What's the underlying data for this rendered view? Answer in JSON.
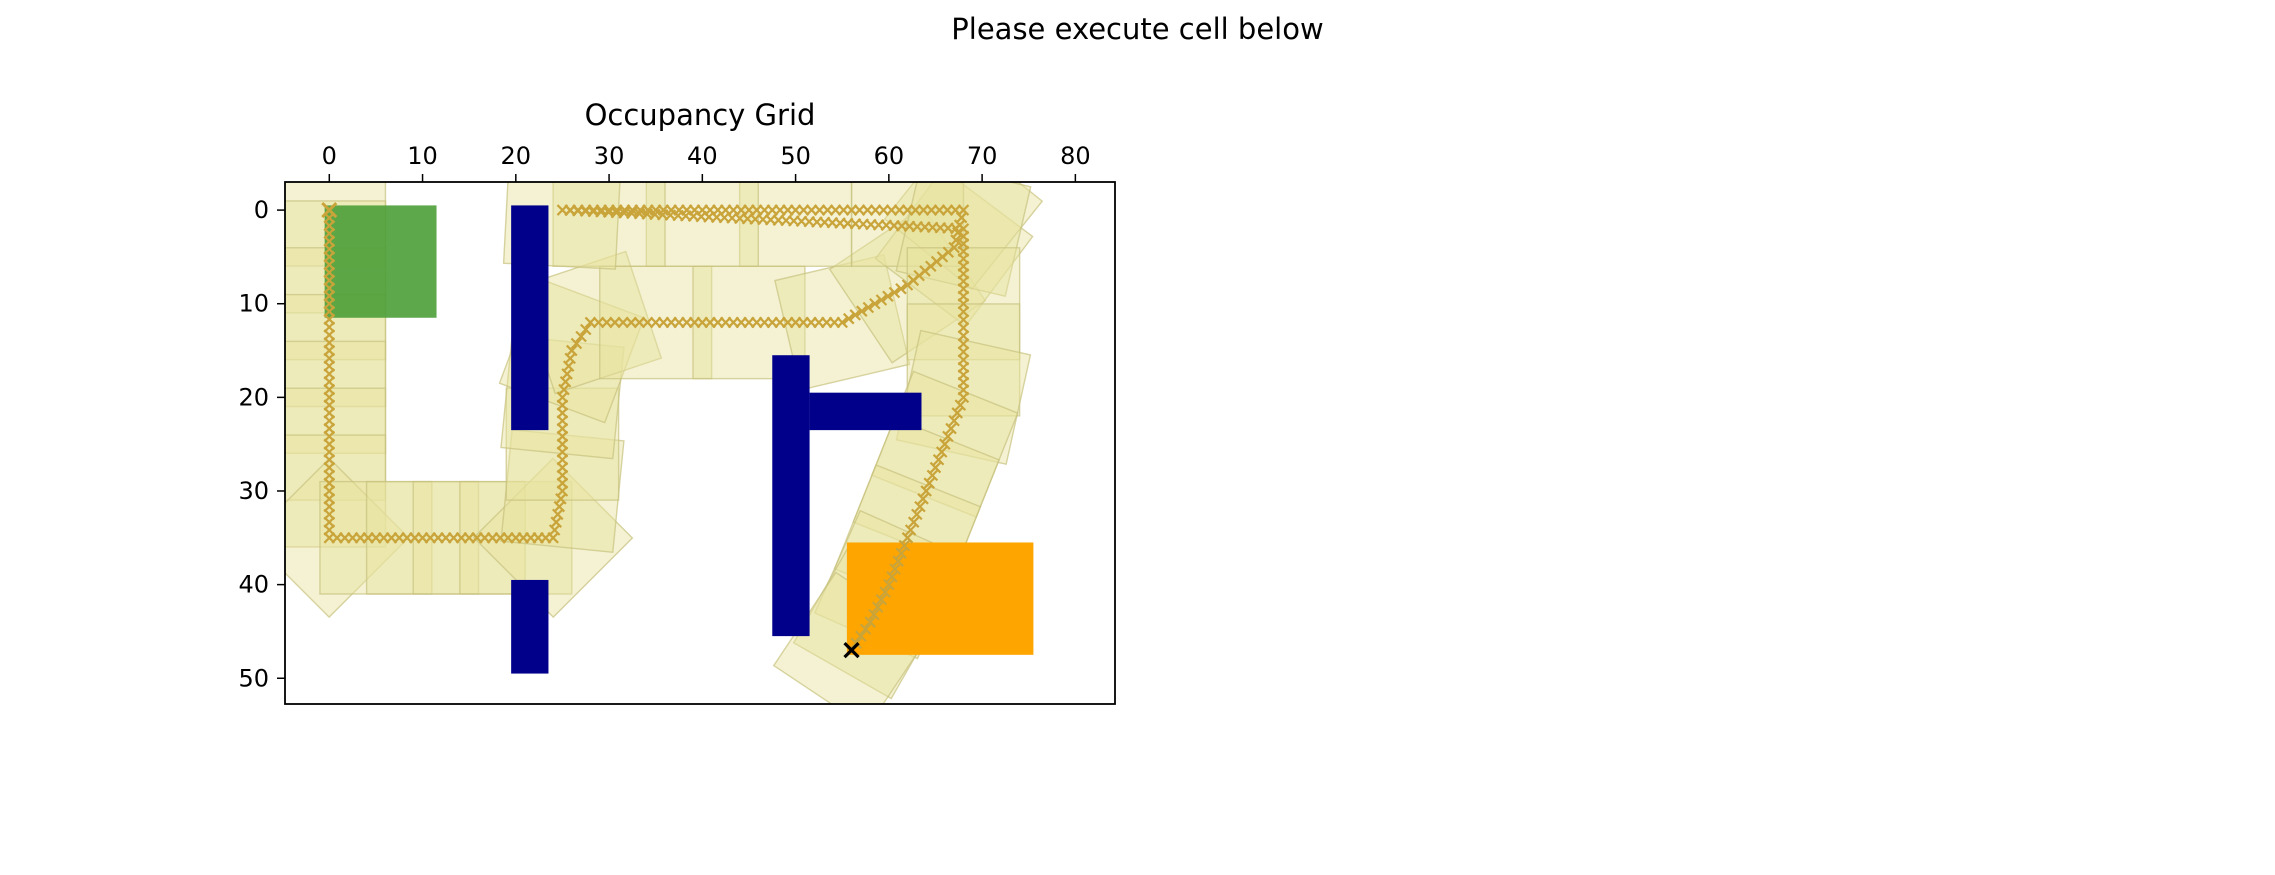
{
  "page": {
    "title": "Please execute cell below"
  },
  "chart_data": {
    "type": "heatmap",
    "title": "Occupancy Grid",
    "xlabel": "",
    "ylabel": "",
    "xlim": [
      -4.75,
      84.25
    ],
    "ylim": [
      52.75,
      -3
    ],
    "x_axis_position": "top",
    "y_axis_inverted": true,
    "grid": false,
    "x_ticks": [
      0,
      10,
      20,
      30,
      40,
      50,
      60,
      70,
      80
    ],
    "y_ticks": [
      0,
      10,
      20,
      30,
      40,
      50
    ],
    "colors": {
      "obstacle": "#00008b",
      "goal_region": "#ffa500",
      "start_pose": "#4c9e38",
      "path_pose": "#e6e29d",
      "path_edge": "#c8c27e",
      "trajectory_marker": "#c9a43a",
      "goal_marker": "#000000"
    },
    "obstacles": [
      {
        "x": [
          19.5,
          23.5
        ],
        "y": [
          -0.5,
          23.5
        ]
      },
      {
        "x": [
          19.5,
          23.5
        ],
        "y": [
          39.5,
          49.5
        ]
      },
      {
        "x": [
          47.5,
          51.5
        ],
        "y": [
          15.5,
          45.5
        ]
      },
      {
        "x": [
          51.5,
          63.5
        ],
        "y": [
          19.5,
          23.5
        ]
      }
    ],
    "goal_region": {
      "x": [
        55.5,
        75.5
      ],
      "y": [
        35.5,
        47.5
      ]
    },
    "start_pose": {
      "x": [
        -0.5,
        11.5
      ],
      "y": [
        -0.5,
        11.5
      ]
    },
    "start_point": [
      0,
      0
    ],
    "goal_point": [
      56,
      47
    ],
    "trajectory": [
      [
        0,
        0
      ],
      [
        0,
        5
      ],
      [
        0,
        10
      ],
      [
        0,
        15
      ],
      [
        0,
        20
      ],
      [
        0,
        25
      ],
      [
        0,
        30
      ],
      [
        0,
        35
      ],
      [
        5,
        35
      ],
      [
        10,
        35
      ],
      [
        15,
        35
      ],
      [
        20,
        35
      ],
      [
        24,
        35
      ],
      [
        25,
        30
      ],
      [
        25,
        25
      ],
      [
        25,
        20
      ],
      [
        26,
        15
      ],
      [
        28,
        12
      ],
      [
        35,
        12
      ],
      [
        45,
        12
      ],
      [
        55,
        12
      ],
      [
        62,
        8
      ],
      [
        67,
        4
      ],
      [
        68,
        0
      ],
      [
        62,
        0
      ],
      [
        50,
        0
      ],
      [
        40,
        0
      ],
      [
        30,
        0
      ],
      [
        25,
        0
      ],
      [
        68,
        2
      ],
      [
        68,
        10
      ],
      [
        68,
        16
      ],
      [
        68,
        20
      ],
      [
        66,
        25
      ],
      [
        64,
        30
      ],
      [
        62,
        35
      ],
      [
        60,
        40
      ],
      [
        58,
        44
      ],
      [
        56,
        47
      ]
    ]
  }
}
